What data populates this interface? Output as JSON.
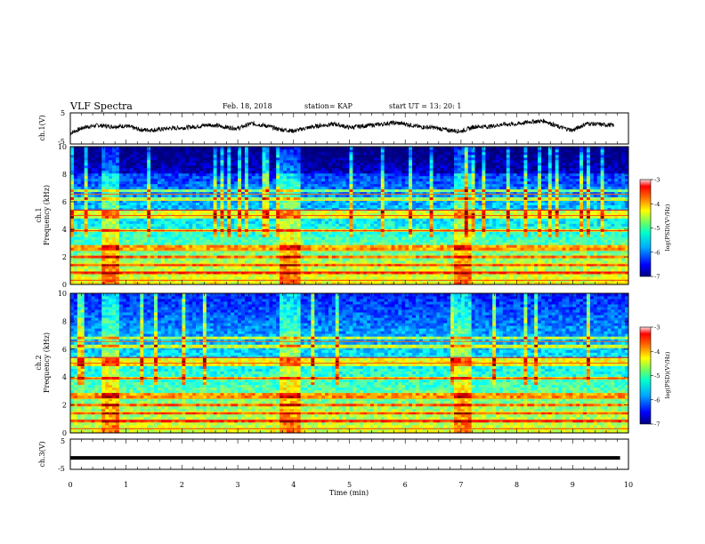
{
  "header": {
    "title": "VLF Spectra",
    "date": "Feb. 18, 2018",
    "station": "station= KAP",
    "start_time": "start  UT =   13: 20: 1"
  },
  "chart_data": [
    {
      "type": "line",
      "panel": "ch1-waveform",
      "ylabel": "ch.1(V)",
      "ylim": [
        -5,
        5
      ],
      "yticks": [
        "5",
        "-5"
      ],
      "xlim": [
        0,
        10
      ],
      "x": [
        0,
        0.25,
        0.5,
        0.75,
        1,
        1.25,
        1.5,
        1.75,
        2,
        2.25,
        2.5,
        2.75,
        3,
        3.25,
        3.5,
        3.75,
        4,
        4.25,
        4.5,
        4.75,
        5,
        5.25,
        5.5,
        5.75,
        6,
        6.25,
        6.5,
        6.75,
        7,
        7.25,
        7.5,
        7.75,
        8,
        8.25,
        8.5,
        8.75,
        9,
        9.25,
        9.5,
        9.75
      ],
      "values": [
        -1.5,
        0.4,
        1.0,
        0.6,
        0.8,
        -0.4,
        -0.5,
        0.0,
        0.2,
        0.6,
        1.2,
        0.5,
        0.0,
        1.6,
        0.9,
        -0.3,
        -0.8,
        0.2,
        1.0,
        1.4,
        0.3,
        0.8,
        1.2,
        1.8,
        1.5,
        0.5,
        0.3,
        -0.5,
        -0.9,
        0.6,
        0.6,
        1.3,
        1.4,
        2.2,
        2.4,
        0.5,
        -0.6,
        1.6,
        1.3,
        1.0
      ]
    },
    {
      "type": "heatmap",
      "panel": "ch1-spectrogram",
      "ylabel": "ch.1\nFrequency (kHz)",
      "ylim": [
        0,
        10
      ],
      "yticks": [
        "0",
        "2",
        "4",
        "6",
        "8",
        "10"
      ],
      "xlim": [
        0,
        10
      ],
      "colorbar": {
        "label": "log(PSD)(V²/Hz)",
        "range": [
          -7,
          -3
        ],
        "ticks": [
          "-3",
          "-4",
          "-5",
          "-6",
          "-7"
        ]
      }
    },
    {
      "type": "heatmap",
      "panel": "ch2-spectrogram",
      "ylabel": "ch.2\nFrequency (kHz)",
      "ylim": [
        0,
        10
      ],
      "yticks": [
        "0",
        "2",
        "4",
        "6",
        "8",
        "10"
      ],
      "xlim": [
        0,
        10
      ],
      "colorbar": {
        "label": "log(PSD)(V²/Hz)",
        "range": [
          -7,
          -3
        ],
        "ticks": [
          "-3",
          "-4",
          "-5",
          "-6",
          "-7"
        ]
      }
    },
    {
      "type": "line",
      "panel": "ch3-waveform",
      "ylabel": "ch.3(V)",
      "ylim": [
        -5,
        5
      ],
      "yticks": [
        "5",
        "-5"
      ],
      "xlim": [
        0,
        10
      ],
      "x": [
        0,
        9.85
      ],
      "values": [
        -1.2,
        -1.2
      ]
    }
  ],
  "xaxis": {
    "label": "Time  (min)",
    "ticks": [
      "0",
      "1",
      "2",
      "3",
      "4",
      "5",
      "6",
      "7",
      "8",
      "9",
      "10"
    ]
  },
  "colors": {
    "jet": [
      "#00007f",
      "#0000ff",
      "#007fff",
      "#00ffff",
      "#7fff7f",
      "#ffff00",
      "#ff7f00",
      "#ff0000",
      "#7f0000"
    ]
  }
}
